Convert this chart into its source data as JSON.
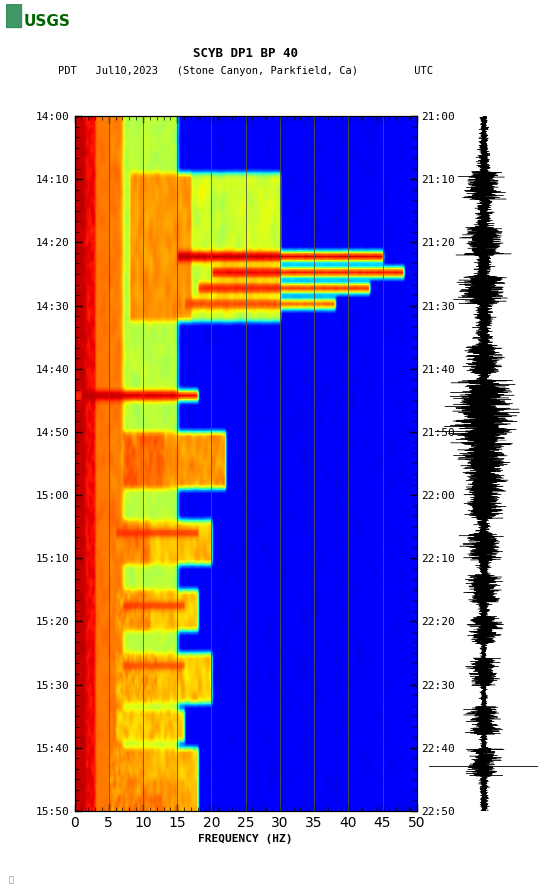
{
  "title_line1": "SCYB DP1 BP 40",
  "title_line2": "PDT   Jul10,2023   (Stone Canyon, Parkfield, Ca)         UTC",
  "xlabel": "FREQUENCY (HZ)",
  "left_times": [
    "14:00",
    "14:10",
    "14:20",
    "14:30",
    "14:40",
    "14:50",
    "15:00",
    "15:10",
    "15:20",
    "15:30",
    "15:40",
    "15:50"
  ],
  "right_times": [
    "21:00",
    "21:10",
    "21:20",
    "21:30",
    "21:40",
    "21:50",
    "22:00",
    "22:10",
    "22:20",
    "22:30",
    "22:40",
    "22:50"
  ],
  "freq_min": 0,
  "freq_max": 50,
  "freq_ticks": [
    0,
    5,
    10,
    15,
    20,
    25,
    30,
    35,
    40,
    45,
    50
  ],
  "vgrid_freqs": [
    5,
    10,
    15,
    20,
    25,
    30,
    35,
    40,
    45
  ],
  "n_time": 220,
  "n_freq": 500,
  "background_color": "#ffffff"
}
